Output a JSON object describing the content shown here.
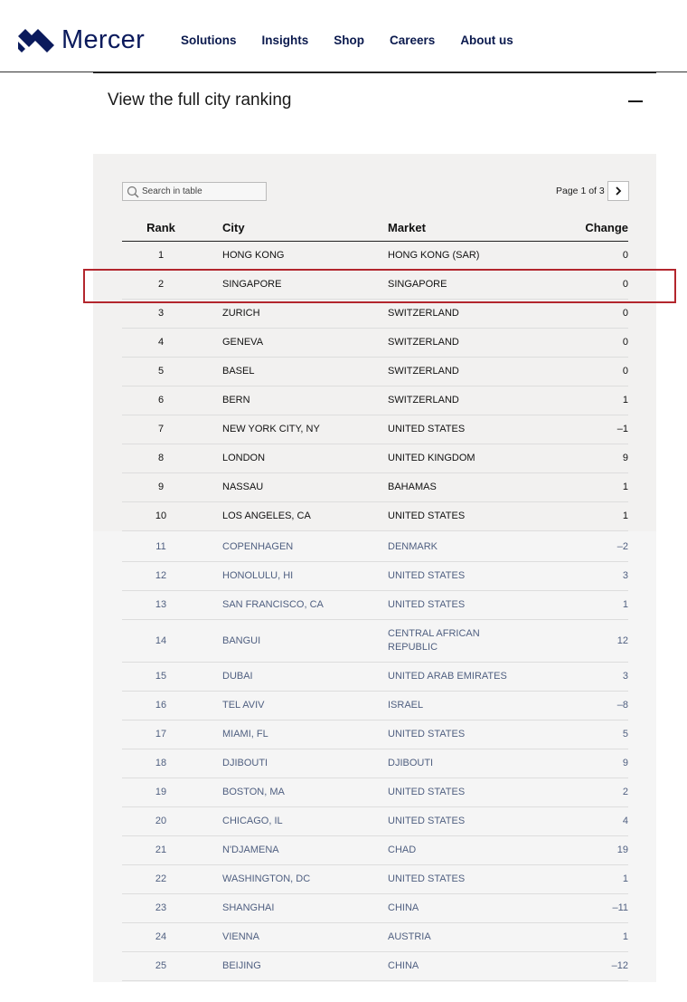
{
  "header": {
    "logo": "Mercer",
    "nav": [
      "Solutions",
      "Insights",
      "Shop",
      "Careers",
      "About us"
    ]
  },
  "section": {
    "title": "View the full city ranking"
  },
  "table": {
    "search_placeholder": "Search in table",
    "pagination": "Page 1 of 3",
    "columns": [
      "Rank",
      "City",
      "Market",
      "Change"
    ],
    "rows": [
      [
        "1",
        "HONG KONG",
        "HONG KONG (SAR)",
        "0"
      ],
      [
        "2",
        "SINGAPORE",
        "SINGAPORE",
        "0"
      ],
      [
        "3",
        "ZURICH",
        "SWITZERLAND",
        "0"
      ],
      [
        "4",
        "GENEVA",
        "SWITZERLAND",
        "0"
      ],
      [
        "5",
        "BASEL",
        "SWITZERLAND",
        "0"
      ],
      [
        "6",
        "BERN",
        "SWITZERLAND",
        "1"
      ],
      [
        "7",
        "NEW YORK CITY, NY",
        "UNITED STATES",
        "–1"
      ],
      [
        "8",
        "LONDON",
        "UNITED KINGDOM",
        "9"
      ],
      [
        "9",
        "NASSAU",
        "BAHAMAS",
        "1"
      ],
      [
        "10",
        "LOS ANGELES, CA",
        "UNITED STATES",
        "1"
      ],
      [
        "11",
        "COPENHAGEN",
        "DENMARK",
        "–2"
      ],
      [
        "12",
        "HONOLULU, HI",
        "UNITED STATES",
        "3"
      ],
      [
        "13",
        "SAN FRANCISCO, CA",
        "UNITED STATES",
        "1"
      ],
      [
        "14",
        "BANGUI",
        "CENTRAL AFRICAN REPUBLIC",
        "12"
      ],
      [
        "15",
        "DUBAI",
        "UNITED ARAB EMIRATES",
        "3"
      ],
      [
        "16",
        "TEL AVIV",
        "ISRAEL",
        "–8"
      ],
      [
        "17",
        "MIAMI, FL",
        "UNITED STATES",
        "5"
      ],
      [
        "18",
        "DJIBOUTI",
        "DJIBOUTI",
        "9"
      ],
      [
        "19",
        "BOSTON, MA",
        "UNITED STATES",
        "2"
      ],
      [
        "20",
        "CHICAGO, IL",
        "UNITED STATES",
        "4"
      ],
      [
        "21",
        "N'DJAMENA",
        "CHAD",
        "19"
      ],
      [
        "22",
        "WASHINGTON, DC",
        "UNITED STATES",
        "1"
      ],
      [
        "23",
        "SHANGHAI",
        "CHINA",
        "–11"
      ],
      [
        "24",
        "VIENNA",
        "AUSTRIA",
        "1"
      ],
      [
        "25",
        "BEIJING",
        "CHINA",
        "–12"
      ]
    ]
  }
}
